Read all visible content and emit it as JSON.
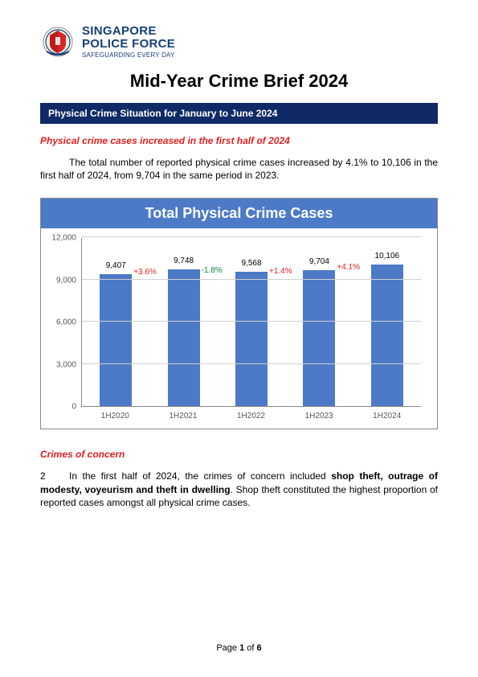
{
  "header": {
    "org1": "SINGAPORE",
    "org2": "POLICE FORCE",
    "tagline": "SAFEGUARDING EVERY DAY",
    "badge_bg": "#153f78",
    "badge_shield": "#d62626"
  },
  "page_title": "Mid-Year Crime Brief 2024",
  "section_banner": "Physical Crime Situation for January to June 2024",
  "subhead1": "Physical crime cases increased in the first half of 2024",
  "para1": "The total number of reported physical crime cases increased by 4.1% to 10,106 in the first half of 2024, from 9,704 in the same period in 2023.",
  "chart": {
    "title": "Total Physical Crime Cases",
    "title_bg": "#4d7ac7",
    "bar_color": "#4d7ac7",
    "grid_color": "#d0d0d0",
    "categories": [
      "1H2020",
      "1H2021",
      "1H2022",
      "1H2023",
      "1H2024"
    ],
    "values": [
      9407,
      9748,
      9568,
      9704,
      10106
    ],
    "deltas": [
      "+3.6%",
      "-1.8%",
      "+1.4%",
      "+4.1%"
    ],
    "delta_colors": [
      "#e01f1f",
      "#0a8a3a",
      "#e01f1f",
      "#e01f1f"
    ],
    "ylim_max": 12000,
    "yticks": [
      0,
      3000,
      6000,
      9000,
      12000
    ],
    "ytick_labels": [
      "0",
      "3,000",
      "6,000",
      "9,000",
      "12,000"
    ]
  },
  "subhead2": "Crimes of concern",
  "para2_num": "2",
  "para2_a": "In the first half of 2024, the crimes of concern included ",
  "para2_bold": "shop theft, outrage of modesty, voyeurism and theft in dwelling",
  "para2_b": ". Shop theft constituted the highest proportion of reported cases amongst all physical crime cases.",
  "footer": {
    "page_label_pre": "Page ",
    "page_current": "1",
    "page_label_mid": " of ",
    "page_total": "6"
  }
}
